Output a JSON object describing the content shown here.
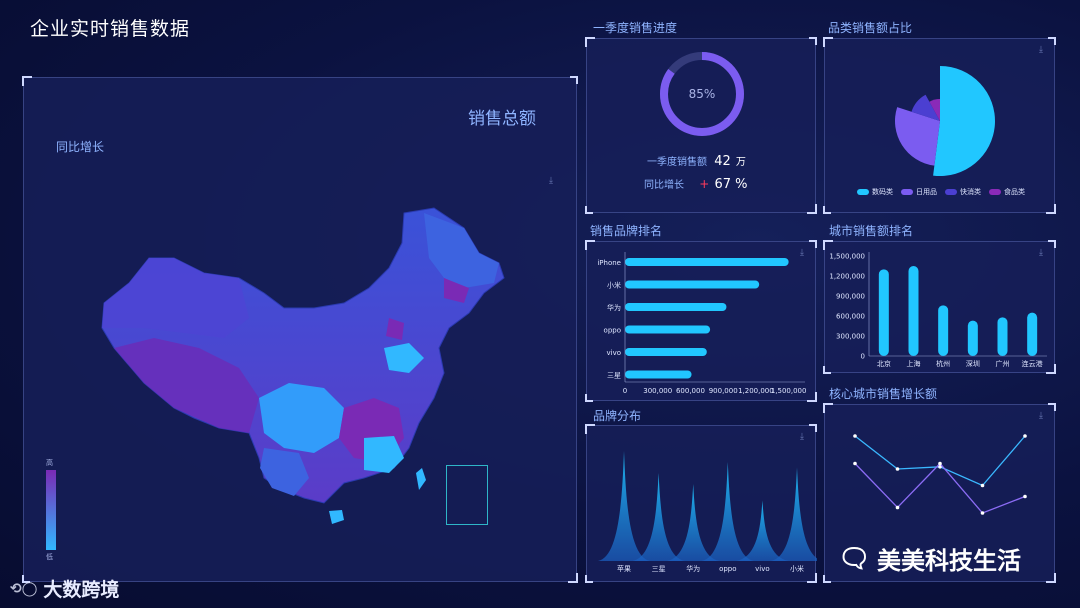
{
  "page": {
    "title": "企业实时销售数据"
  },
  "map_panel": {
    "total_label": "销售总额",
    "growth_label": "同比增长",
    "legend": {
      "high": "高",
      "low": "低"
    }
  },
  "progress_panel": {
    "title": "一季度销售进度",
    "percent_text": "85%",
    "percent": 0.85,
    "sales_label": "一季度销售额",
    "sales_value": "42",
    "sales_unit": "万",
    "growth_label": "同比增长",
    "growth_arrow": "+",
    "growth_value": "67 %"
  },
  "category_panel": {
    "title": "品类销售额占比",
    "legend": [
      {
        "name": "数码类",
        "color": "#21c7ff"
      },
      {
        "name": "日用品",
        "color": "#7b5cf0"
      },
      {
        "name": "快消类",
        "color": "#4b3fd1"
      },
      {
        "name": "食品类",
        "color": "#8a2ab8"
      }
    ],
    "chart_data": {
      "type": "pie",
      "labels": [
        "数码类",
        "日用品",
        "快消类",
        "食品类"
      ],
      "values": [
        52,
        28,
        12,
        8
      ]
    }
  },
  "brand_rank_panel": {
    "title": "销售品牌排名",
    "chart_data": {
      "type": "bar",
      "orientation": "horizontal",
      "categories": [
        "iPhone",
        "小米",
        "华为",
        "oppo",
        "vivo",
        "三星"
      ],
      "values": [
        1500000,
        1230000,
        930000,
        780000,
        750000,
        610000
      ],
      "xticks": [
        "0",
        "300,000",
        "600,000",
        "900,000",
        "1,200,000",
        "1,500,000"
      ],
      "xlim": [
        0,
        1650000
      ]
    }
  },
  "city_rank_panel": {
    "title": "城市销售额排名",
    "chart_data": {
      "type": "bar",
      "categories": [
        "北京",
        "上海",
        "杭州",
        "深圳",
        "广州",
        "连云港"
      ],
      "values": [
        1300000,
        1350000,
        760000,
        530000,
        580000,
        650000
      ],
      "yticks": [
        "0",
        "300,000",
        "600,000",
        "900,000",
        "1,200,000",
        "1,500,000"
      ],
      "ylim": [
        0,
        1500000
      ]
    }
  },
  "brand_dist_panel": {
    "title": "品牌分布",
    "chart_data": {
      "type": "area",
      "categories": [
        "苹果",
        "三星",
        "华为",
        "oppo",
        "vivo",
        "小米"
      ],
      "values": [
        100,
        80,
        70,
        90,
        55,
        85
      ]
    }
  },
  "core_city_panel": {
    "title": "核心城市销售增长额",
    "chart_data": {
      "type": "line",
      "series": [
        {
          "values": [
            90,
            60,
            62,
            45,
            90
          ],
          "color": "#3ab8ff"
        },
        {
          "values": [
            65,
            25,
            65,
            20,
            35
          ],
          "color": "#8c6cf5"
        }
      ]
    }
  },
  "watermark": {
    "brand": "大数跨境",
    "account": "美美科技生活"
  },
  "colors": {
    "accent": "#21c7ff",
    "purple": "#7b5cf0"
  }
}
